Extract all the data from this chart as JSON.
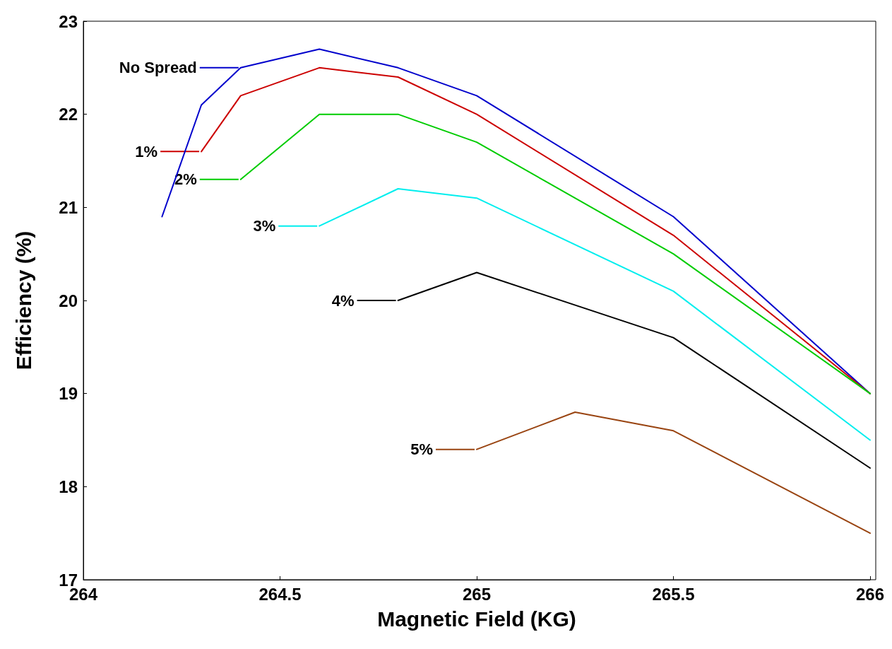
{
  "chart_data": {
    "type": "line",
    "xlabel": "Magnetic Field (KG)",
    "ylabel": "Efficiency (%)",
    "xlim": [
      264,
      266
    ],
    "xticks": [
      264,
      264.5,
      265,
      265.5,
      266
    ],
    "ylim": [
      17,
      23
    ],
    "yticks": [
      17,
      18,
      19,
      20,
      21,
      22,
      23
    ],
    "grid": false,
    "legend": "top left",
    "marker": "none",
    "line_style": "solid",
    "series": [
      {
        "name": "No Spread",
        "color": "#0000cc",
        "x": [
          264.2,
          264.3,
          264.4,
          264.6,
          264.8,
          265,
          265.5,
          266
        ],
        "values": [
          20.9,
          22.1,
          22.5,
          22.7,
          22.5,
          22.2,
          20.9,
          19.0
        ]
      },
      {
        "name": "1%",
        "color": "#cc0000",
        "x": [
          264.3,
          264.4,
          264.6,
          264.8,
          265,
          265.5,
          266
        ],
        "values": [
          21.6,
          22.2,
          22.5,
          22.4,
          22.0,
          20.7,
          19.0
        ]
      },
      {
        "name": "2%",
        "color": "#00cc00",
        "x": [
          264.4,
          264.6,
          264.8,
          265,
          265.5,
          266
        ],
        "values": [
          21.3,
          22.0,
          22.0,
          21.7,
          20.5,
          19.0
        ]
      },
      {
        "name": "3%",
        "color": "#00eeee",
        "x": [
          264.6,
          264.8,
          265,
          265.5,
          266
        ],
        "values": [
          20.8,
          21.2,
          21.1,
          20.1,
          18.5
        ]
      },
      {
        "name": "4%",
        "color": "#000000",
        "x": [
          264.8,
          265,
          265.5,
          266
        ],
        "values": [
          20.0,
          20.3,
          19.6,
          18.2
        ]
      },
      {
        "name": "5%",
        "color": "#994411",
        "x": [
          265,
          265.25,
          265.5,
          266
        ],
        "values": [
          18.4,
          18.8,
          18.6,
          17.5
        ]
      }
    ]
  }
}
